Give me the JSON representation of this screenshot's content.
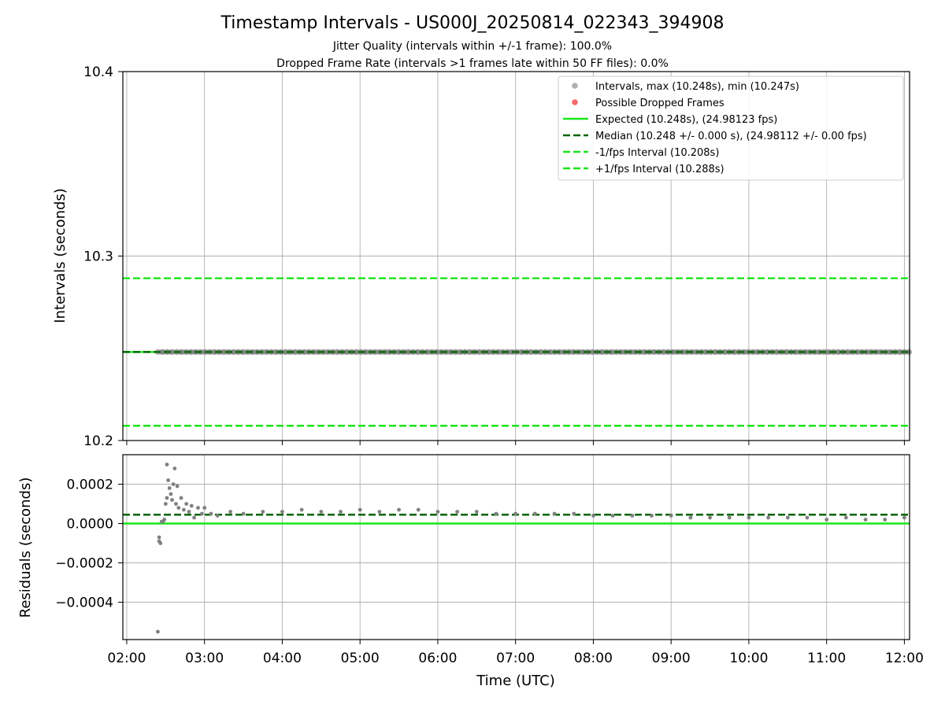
{
  "chart_data": [
    {
      "type": "scatter",
      "title": "Timestamp Intervals - US000J_20250814_022343_394908",
      "subtitle_lines": [
        "Jitter Quality (intervals within +/-1 frame): 100.0%",
        "Dropped Frame Rate (intervals >1 frames late within 50 FF files): 0.0%"
      ],
      "xlabel": "",
      "ylabel": "Intervals (seconds)",
      "xlim": [
        "01:57",
        "12:04"
      ],
      "ylim": [
        10.2,
        10.4
      ],
      "yticks": [
        "10.2",
        "10.3",
        "10.4"
      ],
      "grid": true,
      "legend_position": "top-right",
      "legend": [
        {
          "label": "Intervals, max (10.248s), min (10.247s)",
          "marker": "dot",
          "color": "#b0b0b0"
        },
        {
          "label": "Possible Dropped Frames",
          "marker": "dot",
          "color": "#f56b6b"
        },
        {
          "label": "Expected (10.248s), (24.98123 fps)",
          "marker": "solid",
          "color": "#19e619"
        },
        {
          "label": "Median (10.248 +/- 0.000 s), (24.98112 +/- 0.00 fps)",
          "marker": "dashed",
          "color": "#006400"
        },
        {
          "label": "-1/fps Interval (10.208s)",
          "marker": "dashed",
          "color": "#19e619"
        },
        {
          "label": "+1/fps Interval (10.288s)",
          "marker": "dashed",
          "color": "#19e619"
        }
      ],
      "lines": [
        {
          "name": "Expected",
          "y": 10.248,
          "style": "solid",
          "color": "#19e619"
        },
        {
          "name": "Median",
          "y": 10.248,
          "style": "dashed",
          "color": "#006400"
        },
        {
          "name": "-1/fps Interval",
          "y": 10.208,
          "style": "dashed",
          "color": "#19e619"
        },
        {
          "name": "+1/fps Interval",
          "y": 10.288,
          "style": "dashed",
          "color": "#19e619"
        }
      ],
      "series": [
        {
          "name": "Intervals",
          "x_range": [
            "02:24",
            "12:04"
          ],
          "y": 10.248,
          "color": "#808080"
        }
      ]
    },
    {
      "type": "scatter",
      "xlabel": "Time (UTC)",
      "ylabel": "Residuals (seconds)",
      "xlim": [
        "01:57",
        "12:04"
      ],
      "ylim": [
        -0.00059,
        0.00035
      ],
      "xticks": [
        "02:00",
        "03:00",
        "04:00",
        "05:00",
        "06:00",
        "07:00",
        "08:00",
        "09:00",
        "10:00",
        "11:00",
        "12:00"
      ],
      "yticks": [
        "0.0002",
        "0.0000",
        "−0.0002",
        "−0.0004"
      ],
      "grid": true,
      "lines": [
        {
          "name": "Expected",
          "y": 0.0,
          "style": "solid",
          "color": "#19e619"
        },
        {
          "name": "Median",
          "y": 4.5e-05,
          "style": "dashed",
          "color": "#006400"
        }
      ],
      "series": [
        {
          "name": "Residuals",
          "color": "#808080",
          "points": [
            [
              "02:24",
              -0.00055
            ],
            [
              "02:25",
              -7e-05
            ],
            [
              "02:25",
              -9e-05
            ],
            [
              "02:26",
              -0.0001
            ],
            [
              "02:27",
              1e-05
            ],
            [
              "02:28",
              1e-05
            ],
            [
              "02:29",
              2e-05
            ],
            [
              "02:30",
              0.0001
            ],
            [
              "02:31",
              0.00013
            ],
            [
              "02:31",
              0.0003
            ],
            [
              "02:32",
              0.00022
            ],
            [
              "02:33",
              0.00018
            ],
            [
              "02:34",
              0.00015
            ],
            [
              "02:35",
              0.00012
            ],
            [
              "02:36",
              0.0002
            ],
            [
              "02:37",
              0.00028
            ],
            [
              "02:38",
              0.0001
            ],
            [
              "02:39",
              0.00019
            ],
            [
              "02:40",
              8e-05
            ],
            [
              "02:42",
              0.00013
            ],
            [
              "02:44",
              7e-05
            ],
            [
              "02:46",
              0.0001
            ],
            [
              "02:48",
              6e-05
            ],
            [
              "02:50",
              9e-05
            ],
            [
              "02:52",
              3e-05
            ],
            [
              "02:55",
              8e-05
            ],
            [
              "02:58",
              5e-05
            ],
            [
              "03:00",
              8e-05
            ],
            [
              "03:05",
              5e-05
            ],
            [
              "03:10",
              4e-05
            ],
            [
              "03:20",
              6e-05
            ],
            [
              "03:30",
              5e-05
            ],
            [
              "03:45",
              6e-05
            ],
            [
              "04:00",
              6e-05
            ],
            [
              "04:15",
              7e-05
            ],
            [
              "04:30",
              6e-05
            ],
            [
              "04:45",
              6e-05
            ],
            [
              "05:00",
              7e-05
            ],
            [
              "05:15",
              6e-05
            ],
            [
              "05:30",
              7e-05
            ],
            [
              "05:45",
              7e-05
            ],
            [
              "06:00",
              6e-05
            ],
            [
              "06:15",
              6e-05
            ],
            [
              "06:30",
              6e-05
            ],
            [
              "06:45",
              5e-05
            ],
            [
              "07:00",
              5e-05
            ],
            [
              "07:15",
              5e-05
            ],
            [
              "07:30",
              5e-05
            ],
            [
              "07:45",
              5e-05
            ],
            [
              "08:00",
              4e-05
            ],
            [
              "08:15",
              4e-05
            ],
            [
              "08:30",
              4e-05
            ],
            [
              "08:45",
              4e-05
            ],
            [
              "09:00",
              4e-05
            ],
            [
              "09:15",
              3e-05
            ],
            [
              "09:30",
              3e-05
            ],
            [
              "09:45",
              3e-05
            ],
            [
              "10:00",
              3e-05
            ],
            [
              "10:15",
              3e-05
            ],
            [
              "10:30",
              3e-05
            ],
            [
              "10:45",
              3e-05
            ],
            [
              "11:00",
              2e-05
            ],
            [
              "11:15",
              3e-05
            ],
            [
              "11:30",
              2e-05
            ],
            [
              "11:45",
              2e-05
            ],
            [
              "12:00",
              3e-05
            ]
          ]
        }
      ]
    }
  ]
}
